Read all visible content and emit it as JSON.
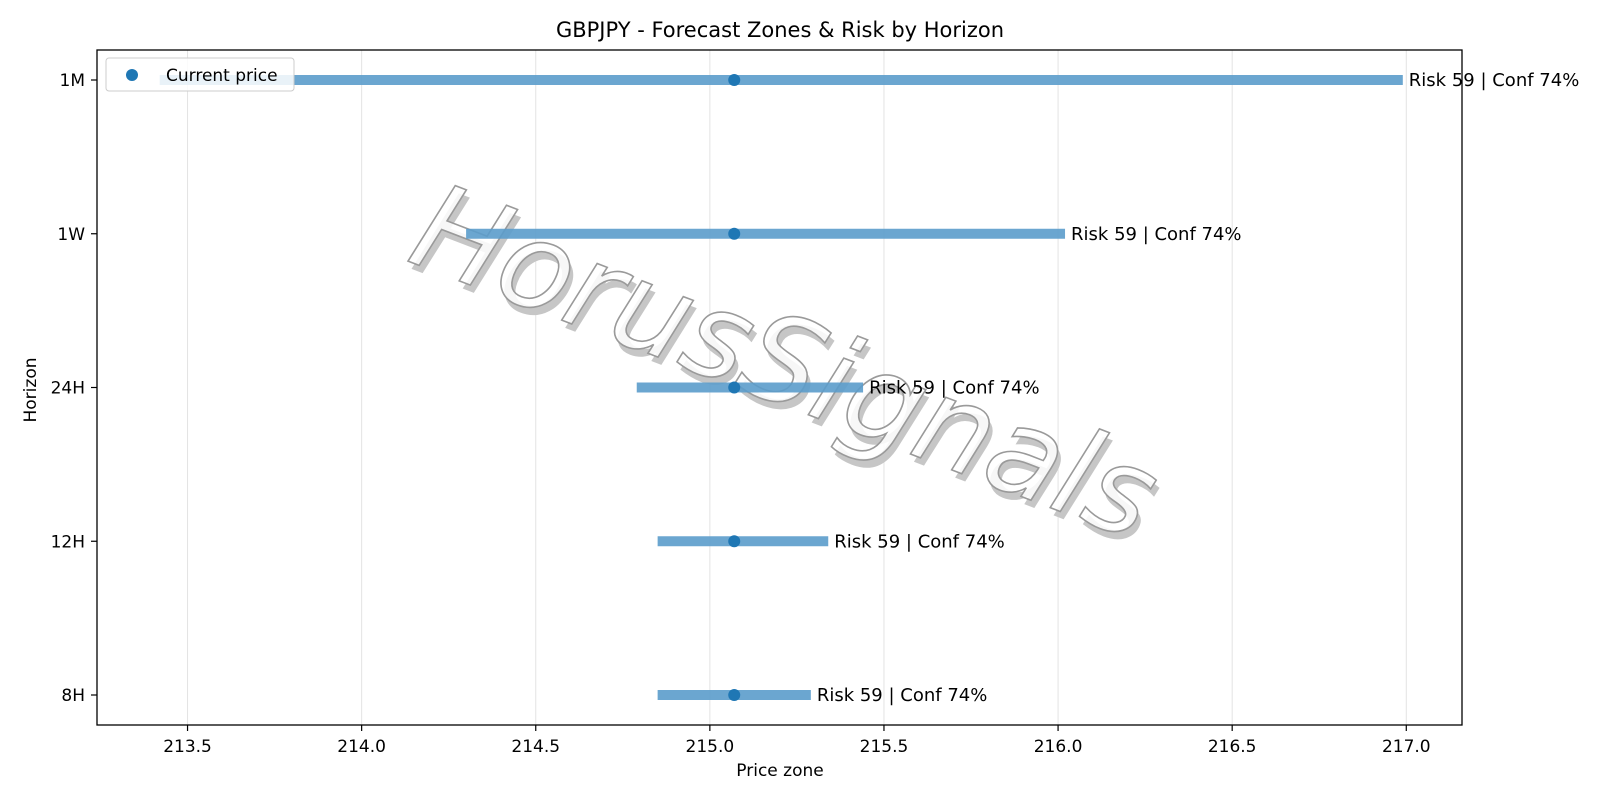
{
  "chart_data": {
    "type": "range-bar",
    "title": "GBPJPY - Forecast Zones & Risk by Horizon",
    "xlabel": "Price zone",
    "ylabel": "Horizon",
    "xlim": [
      213.24,
      217.16
    ],
    "xticks": [
      "213.5",
      "214.0",
      "214.5",
      "215.0",
      "215.5",
      "216.0",
      "216.5",
      "217.0"
    ],
    "xtick_values": [
      213.5,
      214.0,
      214.5,
      215.0,
      215.5,
      216.0,
      216.5,
      217.0
    ],
    "grid": "x",
    "legend": {
      "placement": "top-left",
      "entries": [
        "Current price"
      ]
    },
    "current_price": 215.07,
    "horizons": [
      {
        "label": "1M",
        "low": 213.42,
        "high": 216.99,
        "annotation": "Risk 59 | Conf 74%"
      },
      {
        "label": "1W",
        "low": 214.3,
        "high": 216.02,
        "annotation": "Risk 59 | Conf 74%"
      },
      {
        "label": "24H",
        "low": 214.79,
        "high": 215.44,
        "annotation": "Risk 59 | Conf 74%"
      },
      {
        "label": "12H",
        "low": 214.85,
        "high": 215.34,
        "annotation": "Risk 59 | Conf 74%"
      },
      {
        "label": "8H",
        "low": 214.85,
        "high": 215.29,
        "annotation": "Risk 59 | Conf 74%"
      }
    ],
    "colors": {
      "bar": "#5b9ccb",
      "point": "#1f77b4",
      "grid": "#e3e3e3",
      "watermark": "#9a9a9a"
    }
  },
  "watermark": "HorusSignals"
}
